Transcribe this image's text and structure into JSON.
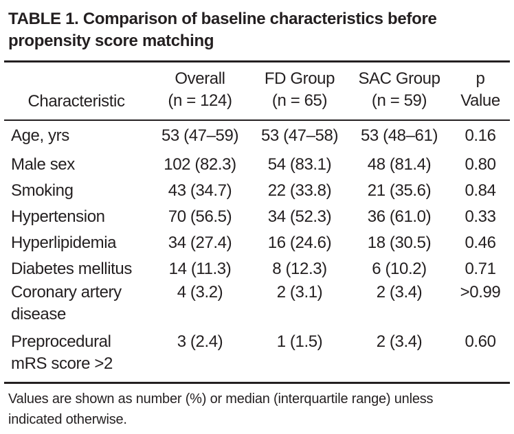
{
  "table": {
    "title": "TABLE 1. Comparison of baseline characteristics before propensity score matching",
    "headers": [
      {
        "line1": "",
        "line2": "Characteristic"
      },
      {
        "line1": "Overall",
        "line2": "(n = 124)"
      },
      {
        "line1": "FD Group",
        "line2": "(n = 65)"
      },
      {
        "line1": "SAC Group",
        "line2": "(n = 59)"
      },
      {
        "line1": "p",
        "line2": "Value"
      }
    ],
    "rows": [
      {
        "characteristic": "Age, yrs",
        "overall": "53 (47–59)",
        "fd": "53 (47–58)",
        "sac": "53 (48–61)",
        "p": "0.16"
      },
      {
        "characteristic": "Male sex",
        "overall": "102 (82.3)",
        "fd": "54 (83.1)",
        "sac": "48 (81.4)",
        "p": "0.80"
      },
      {
        "characteristic": "Smoking",
        "overall": "43 (34.7)",
        "fd": "22 (33.8)",
        "sac": "21 (35.6)",
        "p": "0.84"
      },
      {
        "characteristic": "Hypertension",
        "overall": "70 (56.5)",
        "fd": "34 (52.3)",
        "sac": "36 (61.0)",
        "p": "0.33"
      },
      {
        "characteristic": "Hyperlipidemia",
        "overall": "34 (27.4)",
        "fd": "16 (24.6)",
        "sac": "18 (30.5)",
        "p": "0.46"
      },
      {
        "characteristic": "Diabetes mellitus",
        "overall": "14 (11.3)",
        "fd": "8 (12.3)",
        "sac": "6 (10.2)",
        "p": "0.71"
      },
      {
        "characteristic_line1": "Coronary artery",
        "characteristic_line2": "disease",
        "overall": "4 (3.2)",
        "fd": "2 (3.1)",
        "sac": "2 (3.4)",
        "p": ">0.99"
      },
      {
        "characteristic_line1": "Preprocedural",
        "characteristic_line2": "mRS score >2",
        "overall": "3 (2.4)",
        "fd": "1 (1.5)",
        "sac": "2 (3.4)",
        "p": "0.60"
      }
    ],
    "footnote": "Values are shown as number (%) or median (interquartile range) unless indicated otherwise."
  }
}
